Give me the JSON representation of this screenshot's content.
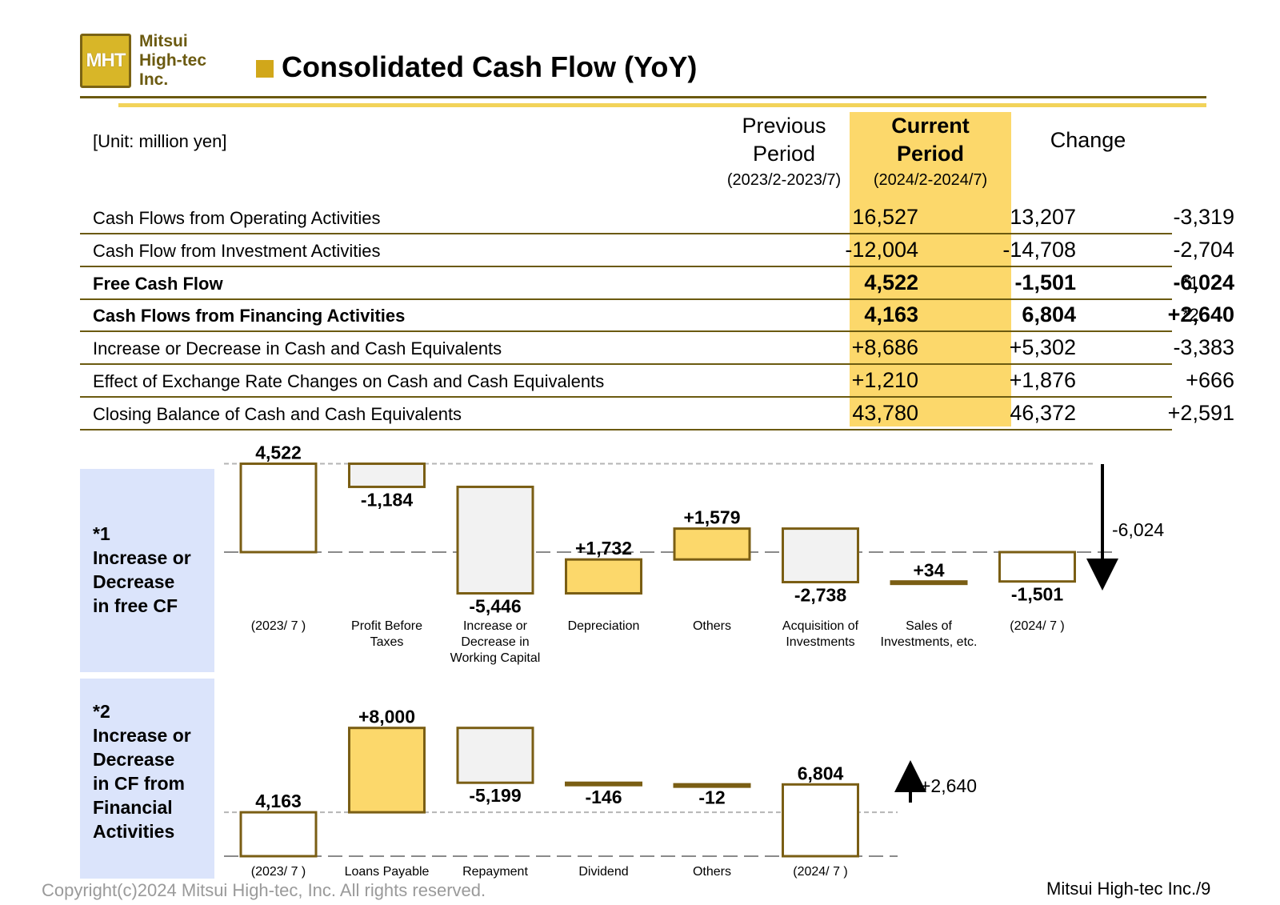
{
  "header": {
    "logo_mark": "MHT",
    "logo_text": "Mitsui\nHigh-tec\nInc.",
    "title": "Consolidated Cash Flow (YoY)"
  },
  "table": {
    "unit": "[Unit: million yen]",
    "columns": {
      "previous": {
        "label": "Previous\nPeriod",
        "sub": "(2023/2-2023/7)"
      },
      "current": {
        "label": "Current\nPeriod",
        "sub": "(2024/2-2024/7)"
      },
      "change": {
        "label": "Change"
      }
    },
    "rows": [
      {
        "label": "Cash Flows from Operating Activities",
        "prev": "16,527",
        "cur": "13,207",
        "chg": "-3,319",
        "note": "",
        "bold": false
      },
      {
        "label": "Cash Flow from Investment Activities",
        "prev": "-12,004",
        "cur": "-14,708",
        "chg": "-2,704",
        "note": "",
        "bold": false
      },
      {
        "label": "Free Cash Flow",
        "prev": "4,522",
        "cur": "-1,501",
        "chg": "-6,024",
        "note": "*1",
        "bold": true
      },
      {
        "label": "Cash Flows from Financing Activities",
        "prev": "4,163",
        "cur": "6,804",
        "chg": "+2,640",
        "note": "*2",
        "bold": true
      },
      {
        "label": "Increase or Decrease in Cash and Cash Equivalents",
        "prev": "+8,686",
        "cur": "+5,302",
        "chg": "-3,383",
        "note": "",
        "bold": false
      },
      {
        "label": "Effect of Exchange Rate Changes on Cash and Cash Equivalents",
        "prev": "+1,210",
        "cur": "+1,876",
        "chg": "+666",
        "note": "",
        "bold": false
      },
      {
        "label": "Closing Balance of Cash and Cash Equivalents",
        "prev": "43,780",
        "cur": "46,372",
        "chg": "+2,591",
        "note": "",
        "bold": false
      }
    ]
  },
  "panels": {
    "fcf": "*1\nIncrease or\nDecrease\nin free CF",
    "fin": "*2\nIncrease or\nDecrease\nin CF from\nFinancial\nActivities"
  },
  "chart_data": [
    {
      "type": "bar",
      "subtype": "waterfall",
      "categories": [
        "(2023/ 7 )",
        "Profit Before\nTaxes",
        "Increase or\nDecrease in\nWorking Capital",
        "Depreciation",
        "Others",
        "Acquisition of\nInvestments",
        "Sales of\nInvestments, etc.",
        "(2024/ 7 )"
      ],
      "steps": [
        {
          "kind": "total",
          "value": 4522,
          "label": "4,522"
        },
        {
          "kind": "delta",
          "value": -1184,
          "label": "-1,184"
        },
        {
          "kind": "delta",
          "value": -5446,
          "label": "-5,446"
        },
        {
          "kind": "delta",
          "value": 1732,
          "label": "+1,732"
        },
        {
          "kind": "delta",
          "value": 1579,
          "label": "+1,579"
        },
        {
          "kind": "delta",
          "value": -2738,
          "label": "-2,738"
        },
        {
          "kind": "delta",
          "value": 34,
          "label": "+34"
        },
        {
          "kind": "total",
          "value": -1501,
          "label": "-1,501"
        }
      ],
      "change_label": "-6,024",
      "ylim": [
        -7000,
        7000
      ],
      "colors": {
        "increase": "#fcd86b",
        "decrease": "#f2f2f2",
        "total": "#ffffff",
        "border": "#7a5e14"
      }
    },
    {
      "type": "bar",
      "subtype": "waterfall",
      "categories": [
        "(2023/ 7 )",
        "Loans Payable",
        "Repayment",
        "Dividend",
        "Others",
        "(2024/ 7 )"
      ],
      "steps": [
        {
          "kind": "total",
          "value": 4163,
          "label": "4,163"
        },
        {
          "kind": "delta",
          "value": 8000,
          "label": "+8,000"
        },
        {
          "kind": "delta",
          "value": -5199,
          "label": "-5,199"
        },
        {
          "kind": "delta",
          "value": -146,
          "label": "-146"
        },
        {
          "kind": "delta",
          "value": -12,
          "label": "-12"
        },
        {
          "kind": "total",
          "value": 6804,
          "label": "6,804"
        }
      ],
      "change_label": "+2,640",
      "ylim": [
        0,
        13000
      ],
      "colors": {
        "increase": "#fcd86b",
        "decrease": "#f2f2f2",
        "total": "#ffffff",
        "border": "#7a5e14"
      }
    }
  ],
  "footer": {
    "copyright": "Copyright(c)2024 Mitsui High-tec, Inc. All rights reserved.",
    "page": "Mitsui High-tec Inc./9"
  }
}
